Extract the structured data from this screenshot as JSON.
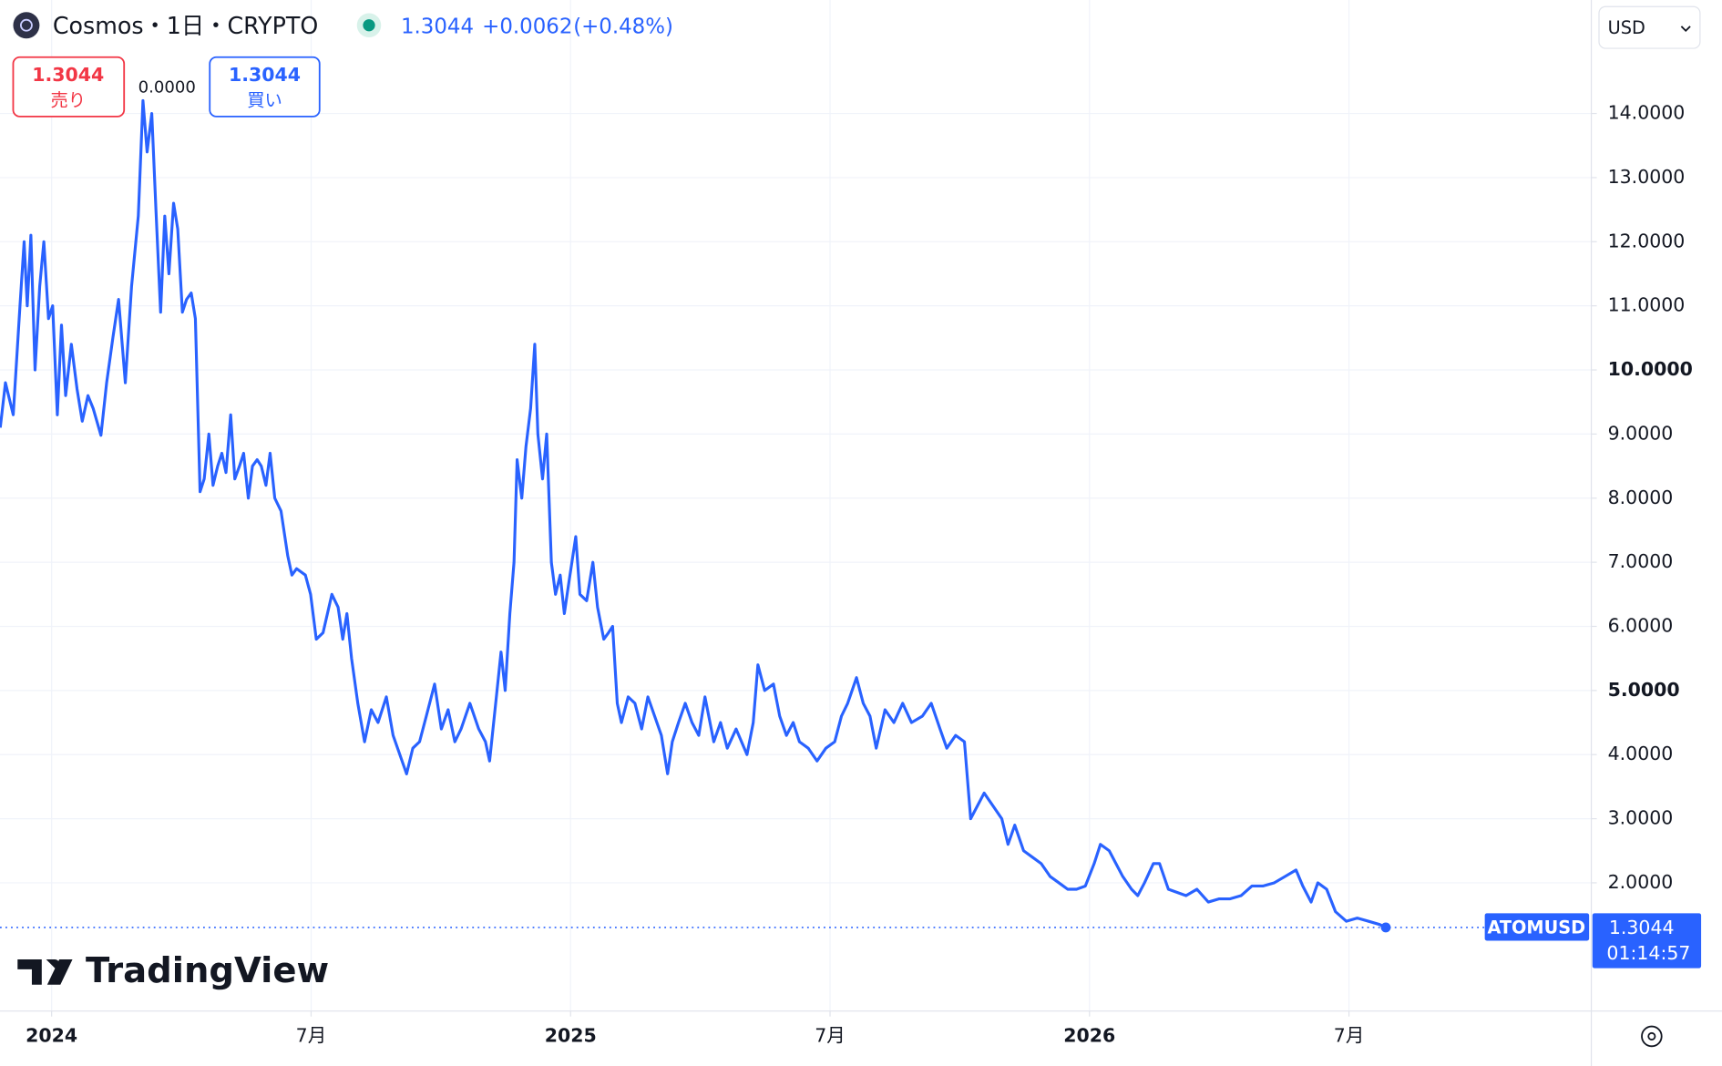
{
  "header": {
    "symbol": "Cosmos・1日・CRYPTO",
    "price": "1.3044",
    "change": "+0.0062",
    "change_pct": "(+0.48%)",
    "currency": "USD",
    "sell": {
      "price": "1.3044",
      "label": "売り"
    },
    "spread": "0.0000",
    "buy": {
      "price": "1.3044",
      "label": "買い"
    },
    "ticker": "ATOMUSD",
    "countdown": "01:14:57",
    "logo": "TradingView"
  },
  "chart_data": {
    "type": "line",
    "color": "#2962ff",
    "grid": true,
    "last_price": 1.3044,
    "xlim": [
      2023.9005,
      2026.967
    ],
    "ylim": [
      0,
      15.77
    ],
    "xticks": [
      2024,
      {
        "value": 2024.5,
        "label": "7月"
      },
      2025,
      {
        "value": 2025.5,
        "label": "7月"
      },
      2026,
      {
        "value": 2026.5,
        "label": "7月"
      }
    ],
    "yticks": [
      {
        "value": 2,
        "label": "2.0000"
      },
      {
        "value": 3,
        "label": "3.0000"
      },
      {
        "value": 4,
        "label": "4.0000"
      },
      {
        "value": 5,
        "label": "5.0000"
      },
      {
        "value": 6,
        "label": "6.0000"
      },
      {
        "value": 7,
        "label": "7.0000"
      },
      {
        "value": 8,
        "label": "8.0000"
      },
      {
        "value": 9,
        "label": "9.0000"
      },
      {
        "value": 10,
        "label": "10.0000"
      },
      {
        "value": 11,
        "label": "11.0000"
      },
      {
        "value": 12,
        "label": "12.0000"
      },
      {
        "value": 13,
        "label": "13.0000"
      },
      {
        "value": 14,
        "label": "14.0000"
      }
    ],
    "x": [
      2023.901,
      2023.911,
      2023.926,
      2023.939,
      2023.947,
      2023.953,
      2023.96,
      2023.968,
      2023.977,
      2023.985,
      2023.994,
      2024.002,
      2024.011,
      2024.019,
      2024.027,
      2024.038,
      2024.049,
      2024.059,
      2024.07,
      2024.08,
      2024.095,
      2024.106,
      2024.118,
      2024.129,
      2024.142,
      2024.154,
      2024.167,
      2024.176,
      2024.184,
      2024.193,
      2024.201,
      2024.21,
      2024.218,
      2024.226,
      2024.235,
      2024.243,
      2024.252,
      2024.26,
      2024.269,
      2024.277,
      2024.286,
      2024.294,
      2024.303,
      2024.311,
      2024.32,
      2024.328,
      2024.336,
      2024.345,
      2024.353,
      2024.362,
      2024.37,
      2024.379,
      2024.387,
      2024.396,
      2024.404,
      2024.413,
      2024.421,
      2024.43,
      2024.442,
      2024.455,
      2024.463,
      2024.472,
      2024.489,
      2024.499,
      2024.51,
      2024.523,
      2024.54,
      2024.552,
      2024.561,
      2024.569,
      2024.578,
      2024.59,
      2024.603,
      2024.616,
      2024.629,
      2024.645,
      2024.658,
      2024.671,
      2024.684,
      2024.696,
      2024.709,
      2024.722,
      2024.738,
      2024.751,
      2024.764,
      2024.777,
      2024.789,
      2024.806,
      2024.823,
      2024.836,
      2024.844,
      2024.857,
      2024.866,
      2024.874,
      2024.883,
      2024.891,
      2024.897,
      2024.906,
      2024.914,
      2024.923,
      2024.931,
      2024.937,
      2024.946,
      2024.954,
      2024.963,
      2024.971,
      2024.98,
      2024.988,
      2024.997,
      2025.01,
      2025.018,
      2025.031,
      2025.043,
      2025.052,
      2025.064,
      2025.073,
      2025.081,
      2025.09,
      2025.098,
      2025.111,
      2025.124,
      2025.137,
      2025.149,
      2025.162,
      2025.175,
      2025.187,
      2025.196,
      2025.208,
      2025.221,
      2025.234,
      2025.247,
      2025.259,
      2025.276,
      2025.289,
      2025.302,
      2025.319,
      2025.34,
      2025.352,
      2025.361,
      2025.374,
      2025.391,
      2025.403,
      2025.416,
      2025.429,
      2025.441,
      2025.458,
      2025.475,
      2025.492,
      2025.509,
      2025.522,
      2025.534,
      2025.551,
      2025.564,
      2025.577,
      2025.589,
      2025.606,
      2025.623,
      2025.64,
      2025.657,
      2025.678,
      2025.695,
      2025.712,
      2025.725,
      2025.742,
      2025.759,
      2025.771,
      2025.784,
      2025.797,
      2025.814,
      2025.831,
      2025.843,
      2025.856,
      2025.873,
      2025.89,
      2025.907,
      2025.924,
      2025.941,
      2025.958,
      2025.975,
      2025.992,
      2026.009,
      2026.021,
      2026.038,
      2026.051,
      2026.064,
      2026.081,
      2026.093,
      2026.106,
      2026.123,
      2026.135,
      2026.152,
      2026.169,
      2026.186,
      2026.207,
      2026.229,
      2026.25,
      2026.271,
      2026.292,
      2026.313,
      2026.334,
      2026.356,
      2026.377,
      2026.398,
      2026.411,
      2026.427,
      2026.44,
      2026.457,
      2026.474,
      2026.495,
      2026.516,
      2026.538,
      2026.559,
      2026.571
    ],
    "values": [
      9.1,
      9.8,
      9.3,
      11.0,
      12.0,
      11.0,
      12.1,
      10.0,
      11.3,
      12.0,
      10.8,
      11.0,
      9.3,
      10.7,
      9.6,
      10.4,
      9.7,
      9.2,
      9.6,
      9.4,
      8.98,
      9.8,
      10.5,
      11.1,
      9.8,
      11.3,
      12.4,
      14.2,
      13.4,
      14.0,
      12.5,
      10.9,
      12.4,
      11.5,
      12.6,
      12.2,
      10.9,
      11.1,
      11.2,
      10.8,
      8.1,
      8.3,
      9.0,
      8.2,
      8.5,
      8.7,
      8.4,
      9.3,
      8.3,
      8.5,
      8.7,
      8.0,
      8.5,
      8.6,
      8.5,
      8.2,
      8.7,
      8.0,
      7.8,
      7.1,
      6.8,
      6.9,
      6.8,
      6.5,
      5.8,
      5.9,
      6.5,
      6.3,
      5.8,
      6.2,
      5.5,
      4.8,
      4.2,
      4.7,
      4.5,
      4.9,
      4.3,
      4.0,
      3.7,
      4.1,
      4.2,
      4.6,
      5.1,
      4.4,
      4.7,
      4.2,
      4.4,
      4.8,
      4.4,
      4.2,
      3.9,
      4.9,
      5.6,
      5.0,
      6.2,
      7.0,
      8.6,
      8.0,
      8.8,
      9.4,
      10.4,
      9.0,
      8.3,
      9.0,
      7.0,
      6.5,
      6.8,
      6.2,
      6.7,
      7.4,
      6.5,
      6.4,
      7.0,
      6.3,
      5.8,
      5.9,
      6.0,
      4.8,
      4.5,
      4.9,
      4.8,
      4.4,
      4.9,
      4.6,
      4.3,
      3.7,
      4.2,
      4.5,
      4.8,
      4.5,
      4.3,
      4.9,
      4.2,
      4.5,
      4.1,
      4.4,
      4.0,
      4.5,
      5.4,
      5.0,
      5.1,
      4.6,
      4.3,
      4.5,
      4.2,
      4.1,
      3.9,
      4.1,
      4.2,
      4.6,
      4.8,
      5.2,
      4.8,
      4.6,
      4.1,
      4.7,
      4.5,
      4.8,
      4.5,
      4.6,
      4.8,
      4.4,
      4.1,
      4.3,
      4.2,
      3.0,
      3.2,
      3.4,
      3.2,
      3.0,
      2.6,
      2.9,
      2.5,
      2.4,
      2.3,
      2.1,
      2.0,
      1.9,
      1.9,
      1.95,
      2.3,
      2.6,
      2.5,
      2.3,
      2.1,
      1.9,
      1.8,
      2.0,
      2.3,
      2.3,
      1.9,
      1.85,
      1.8,
      1.9,
      1.7,
      1.75,
      1.75,
      1.8,
      1.95,
      1.95,
      2.0,
      2.1,
      2.2,
      1.95,
      1.7,
      2.0,
      1.9,
      1.55,
      1.4,
      1.45,
      1.4,
      1.35,
      1.3044
    ]
  }
}
